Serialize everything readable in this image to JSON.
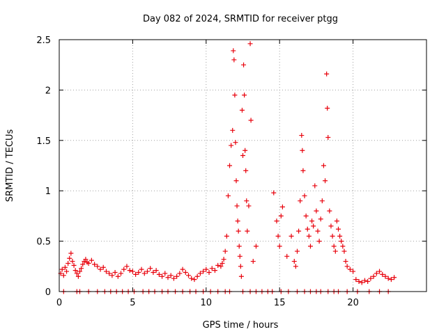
{
  "chart_data": {
    "type": "scatter",
    "title": "Day 082 of 2024, SRMTID for receiver ptgg",
    "xlabel": "GPS time / hours",
    "ylabel": "SRMTID / TECUs",
    "xlim": [
      0,
      25
    ],
    "ylim": [
      0,
      2.5
    ],
    "xticks": [
      0,
      5,
      10,
      15,
      20
    ],
    "xtick_labels": [
      "0",
      "5",
      "10",
      "15",
      "20"
    ],
    "yticks": [
      0,
      0.5,
      1,
      1.5,
      2,
      2.5
    ],
    "ytick_labels": [
      "0",
      "0.5",
      "1",
      "1.5",
      "2",
      "2.5"
    ],
    "grid": true,
    "marker": "+",
    "series": [
      {
        "name": "SRMTID",
        "color": "#e8000b",
        "points": [
          [
            0.1,
            0.18
          ],
          [
            0.2,
            0.22
          ],
          [
            0.3,
            0.16
          ],
          [
            0.4,
            0.24
          ],
          [
            0.5,
            0.2
          ],
          [
            0.6,
            0.28
          ],
          [
            0.7,
            0.33
          ],
          [
            0.8,
            0.38
          ],
          [
            0.9,
            0.3
          ],
          [
            1.0,
            0.26
          ],
          [
            1.1,
            0.21
          ],
          [
            1.2,
            0.18
          ],
          [
            1.3,
            0.15
          ],
          [
            1.4,
            0.2
          ],
          [
            1.5,
            0.23
          ],
          [
            1.6,
            0.27
          ],
          [
            1.7,
            0.3
          ],
          [
            1.8,
            0.32
          ],
          [
            1.9,
            0.29
          ],
          [
            2.0,
            0.28
          ],
          [
            2.2,
            0.31
          ],
          [
            2.4,
            0.27
          ],
          [
            2.6,
            0.25
          ],
          [
            2.8,
            0.22
          ],
          [
            3.0,
            0.24
          ],
          [
            3.2,
            0.2
          ],
          [
            3.4,
            0.18
          ],
          [
            3.6,
            0.16
          ],
          [
            3.8,
            0.19
          ],
          [
            4.0,
            0.15
          ],
          [
            4.2,
            0.18
          ],
          [
            4.4,
            0.22
          ],
          [
            4.6,
            0.25
          ],
          [
            4.8,
            0.21
          ],
          [
            5.0,
            0.2
          ],
          [
            5.2,
            0.17
          ],
          [
            5.4,
            0.19
          ],
          [
            5.6,
            0.22
          ],
          [
            5.8,
            0.18
          ],
          [
            6.0,
            0.2
          ],
          [
            6.2,
            0.23
          ],
          [
            6.4,
            0.19
          ],
          [
            6.6,
            0.21
          ],
          [
            6.8,
            0.17
          ],
          [
            7.0,
            0.15
          ],
          [
            7.2,
            0.18
          ],
          [
            7.4,
            0.14
          ],
          [
            7.6,
            0.16
          ],
          [
            7.8,
            0.13
          ],
          [
            8.0,
            0.15
          ],
          [
            8.2,
            0.18
          ],
          [
            8.4,
            0.22
          ],
          [
            8.6,
            0.19
          ],
          [
            8.8,
            0.16
          ],
          [
            9.0,
            0.13
          ],
          [
            9.2,
            0.12
          ],
          [
            9.4,
            0.15
          ],
          [
            9.6,
            0.18
          ],
          [
            9.8,
            0.2
          ],
          [
            10.0,
            0.22
          ],
          [
            10.2,
            0.19
          ],
          [
            10.4,
            0.23
          ],
          [
            10.6,
            0.21
          ],
          [
            10.8,
            0.26
          ],
          [
            11.0,
            0.25
          ],
          [
            11.1,
            0.28
          ],
          [
            11.2,
            0.32
          ],
          [
            11.3,
            0.4
          ],
          [
            11.4,
            0.55
          ],
          [
            11.5,
            0.95
          ],
          [
            11.6,
            1.25
          ],
          [
            11.7,
            1.45
          ],
          [
            11.8,
            1.6
          ],
          [
            11.85,
            2.39
          ],
          [
            11.9,
            2.3
          ],
          [
            11.95,
            1.95
          ],
          [
            12.0,
            1.48
          ],
          [
            12.05,
            1.1
          ],
          [
            12.1,
            0.85
          ],
          [
            12.15,
            0.7
          ],
          [
            12.2,
            0.6
          ],
          [
            12.25,
            0.45
          ],
          [
            12.3,
            0.35
          ],
          [
            12.35,
            0.25
          ],
          [
            12.4,
            0.15
          ],
          [
            12.45,
            1.8
          ],
          [
            12.5,
            1.35
          ],
          [
            12.55,
            2.25
          ],
          [
            12.6,
            1.95
          ],
          [
            12.65,
            1.4
          ],
          [
            12.7,
            1.2
          ],
          [
            12.75,
            0.9
          ],
          [
            12.8,
            0.6
          ],
          [
            12.9,
            0.85
          ],
          [
            13.0,
            2.46
          ],
          [
            13.05,
            1.7
          ],
          [
            13.2,
            0.3
          ],
          [
            13.4,
            0.45
          ],
          [
            14.6,
            0.98
          ],
          [
            14.8,
            0.7
          ],
          [
            14.9,
            0.55
          ],
          [
            15.0,
            0.45
          ],
          [
            15.1,
            0.75
          ],
          [
            15.2,
            0.84
          ],
          [
            15.5,
            0.35
          ],
          [
            15.8,
            0.55
          ],
          [
            16.0,
            0.3
          ],
          [
            16.1,
            0.25
          ],
          [
            16.2,
            0.4
          ],
          [
            16.3,
            0.6
          ],
          [
            16.4,
            0.9
          ],
          [
            16.5,
            1.55
          ],
          [
            16.55,
            1.4
          ],
          [
            16.6,
            1.2
          ],
          [
            16.7,
            0.95
          ],
          [
            16.8,
            0.75
          ],
          [
            16.9,
            0.62
          ],
          [
            17.0,
            0.55
          ],
          [
            17.1,
            0.45
          ],
          [
            17.2,
            0.7
          ],
          [
            17.3,
            0.65
          ],
          [
            17.4,
            1.05
          ],
          [
            17.5,
            0.8
          ],
          [
            17.6,
            0.6
          ],
          [
            17.7,
            0.5
          ],
          [
            17.8,
            0.72
          ],
          [
            17.9,
            0.9
          ],
          [
            18.0,
            1.25
          ],
          [
            18.1,
            1.1
          ],
          [
            18.2,
            2.16
          ],
          [
            18.25,
            1.82
          ],
          [
            18.3,
            1.53
          ],
          [
            18.4,
            0.8
          ],
          [
            18.5,
            0.65
          ],
          [
            18.6,
            0.55
          ],
          [
            18.7,
            0.45
          ],
          [
            18.8,
            0.4
          ],
          [
            18.9,
            0.7
          ],
          [
            19.0,
            0.62
          ],
          [
            19.1,
            0.55
          ],
          [
            19.2,
            0.5
          ],
          [
            19.3,
            0.45
          ],
          [
            19.4,
            0.4
          ],
          [
            19.5,
            0.3
          ],
          [
            19.6,
            0.25
          ],
          [
            19.8,
            0.22
          ],
          [
            20.0,
            0.2
          ],
          [
            20.2,
            0.12
          ],
          [
            20.4,
            0.1
          ],
          [
            20.6,
            0.09
          ],
          [
            20.8,
            0.11
          ],
          [
            21.0,
            0.1
          ],
          [
            21.2,
            0.13
          ],
          [
            21.4,
            0.15
          ],
          [
            21.6,
            0.18
          ],
          [
            21.8,
            0.2
          ],
          [
            22.0,
            0.17
          ],
          [
            22.2,
            0.15
          ],
          [
            22.4,
            0.13
          ],
          [
            22.6,
            0.12
          ],
          [
            22.8,
            0.14
          ],
          [
            0.3,
            0
          ],
          [
            1.2,
            0
          ],
          [
            1.4,
            0
          ],
          [
            2.0,
            0
          ],
          [
            2.6,
            0
          ],
          [
            3.1,
            0
          ],
          [
            3.5,
            0
          ],
          [
            3.9,
            0
          ],
          [
            4.3,
            0
          ],
          [
            4.7,
            0
          ],
          [
            5.1,
            0
          ],
          [
            5.7,
            0
          ],
          [
            6.1,
            0
          ],
          [
            6.5,
            0
          ],
          [
            7.0,
            0
          ],
          [
            7.4,
            0
          ],
          [
            7.9,
            0
          ],
          [
            8.4,
            0
          ],
          [
            8.9,
            0
          ],
          [
            9.3,
            0
          ],
          [
            9.8,
            0
          ],
          [
            10.3,
            0
          ],
          [
            10.8,
            0
          ],
          [
            11.3,
            0
          ],
          [
            11.6,
            0
          ],
          [
            12.5,
            0
          ],
          [
            13.0,
            0
          ],
          [
            13.4,
            0
          ],
          [
            13.8,
            0
          ],
          [
            14.2,
            0
          ],
          [
            14.5,
            0
          ],
          [
            15.1,
            0
          ],
          [
            15.6,
            0
          ],
          [
            16.2,
            0
          ],
          [
            16.7,
            0
          ],
          [
            17.1,
            0
          ],
          [
            17.5,
            0
          ],
          [
            17.8,
            0
          ],
          [
            18.3,
            0
          ],
          [
            18.7,
            0
          ],
          [
            19.0,
            0
          ],
          [
            19.6,
            0
          ],
          [
            20.3,
            0
          ],
          [
            21.1,
            0
          ],
          [
            21.8,
            0
          ],
          [
            22.4,
            0
          ]
        ]
      }
    ]
  }
}
